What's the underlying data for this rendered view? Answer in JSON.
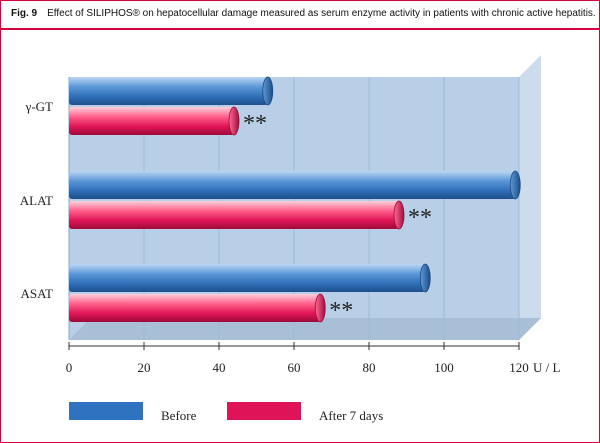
{
  "caption": {
    "fig_label": "Fig. 9",
    "text": "Effect of SILIPHOS® on hepatocellular damage measured as serum enzyme activity in patients with chronic active hepatitis."
  },
  "colors": {
    "frame_accent": "#d8003c",
    "before": "#3b7cc4",
    "after": "#e0185a",
    "panel": "#b6cde6"
  },
  "chart_data": {
    "type": "bar",
    "orientation": "horizontal",
    "categories": [
      "γ-GT",
      "ALAT",
      "ASAT"
    ],
    "series": [
      {
        "name": "Before",
        "values": [
          53,
          119,
          95
        ]
      },
      {
        "name": "After 7 days",
        "values": [
          44,
          88,
          67
        ]
      }
    ],
    "annotations": [
      "**",
      "**",
      "**"
    ],
    "xlim": [
      0,
      120
    ],
    "ticks": [
      0,
      20,
      40,
      60,
      80,
      100,
      120
    ],
    "unit": "U / L",
    "grid": true,
    "legend_position": "bottom"
  }
}
